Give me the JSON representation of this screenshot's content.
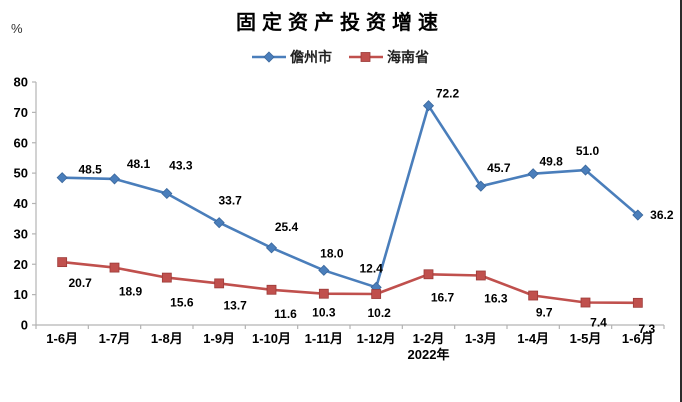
{
  "chart_data": {
    "type": "line",
    "title": "固定资产投资增速",
    "ylabel": "%",
    "xlabel": "",
    "categories": [
      "1-6月",
      "1-7月",
      "1-8月",
      "1-9月",
      "1-10月",
      "1-11月",
      "1-12月",
      "1-2月",
      "1-3月",
      "1-4月",
      "1-5月",
      "1-6月"
    ],
    "x_axis_year": {
      "index": 7,
      "label": "2022年"
    },
    "y_ticks": [
      "80",
      "70",
      "60",
      "50",
      "40",
      "30",
      "20",
      "10",
      "0"
    ],
    "ylim": [
      0,
      80
    ],
    "grid": false,
    "legend_position": "top",
    "axis_color": "#b3b3b3",
    "label_color": "#000000",
    "series": [
      {
        "name": "儋州市",
        "color": "#4a7ebb",
        "marker": "diamond",
        "marker_border": "#3a679c",
        "values": [
          48.5,
          48.1,
          43.3,
          33.7,
          25.4,
          18.0,
          12.4,
          72.2,
          45.7,
          49.8,
          51.0,
          36.2
        ],
        "labels": [
          "48.5",
          "48.1",
          "43.3",
          "33.7",
          "25.4",
          "18.0",
          "12.4",
          "72.2",
          "45.7",
          "49.8",
          "51.0",
          "36.2"
        ]
      },
      {
        "name": "海南省",
        "color": "#c0504d",
        "marker": "square",
        "marker_border": "#9c3a38",
        "values": [
          20.7,
          18.9,
          15.6,
          13.7,
          11.6,
          10.3,
          10.2,
          16.7,
          16.3,
          9.7,
          7.4,
          7.3
        ],
        "labels": [
          "20.7",
          "18.9",
          "15.6",
          "13.7",
          "11.6",
          "10.3",
          "10.2",
          "16.7",
          "16.3",
          "9.7",
          "7.4",
          "7.3"
        ]
      }
    ]
  }
}
